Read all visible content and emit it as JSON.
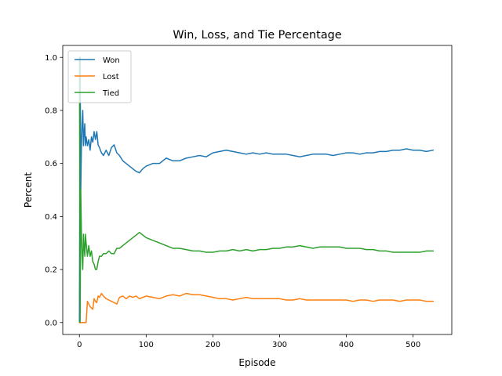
{
  "chart_data": {
    "type": "line",
    "title": "Win, Loss, and Tie Percentage",
    "xlabel": "Episode",
    "ylabel": "Percent",
    "xlim": [
      -25,
      558
    ],
    "ylim": [
      -0.045,
      1.045
    ],
    "xticks": [
      0,
      100,
      200,
      300,
      400,
      500
    ],
    "yticks": [
      0.0,
      0.2,
      0.4,
      0.6,
      0.8,
      1.0
    ],
    "xtick_labels": [
      "0",
      "100",
      "200",
      "300",
      "400",
      "500"
    ],
    "ytick_labels": [
      "0.0",
      "0.2",
      "0.4",
      "0.6",
      "0.8",
      "1.0"
    ],
    "grid": false,
    "legend_position": "upper-left",
    "series": [
      {
        "name": "Won",
        "color": "#1f77b4",
        "x": [
          0,
          1,
          2,
          3,
          4,
          5,
          6,
          7,
          8,
          9,
          10,
          12,
          14,
          16,
          18,
          20,
          22,
          24,
          26,
          28,
          30,
          33,
          36,
          40,
          44,
          48,
          52,
          56,
          60,
          65,
          70,
          75,
          80,
          85,
          90,
          95,
          100,
          110,
          120,
          130,
          140,
          150,
          160,
          170,
          180,
          190,
          200,
          210,
          220,
          230,
          240,
          250,
          260,
          270,
          280,
          290,
          300,
          310,
          320,
          330,
          340,
          350,
          360,
          370,
          380,
          390,
          400,
          410,
          420,
          430,
          440,
          450,
          460,
          470,
          480,
          490,
          500,
          510,
          520,
          530
        ],
        "y": [
          0.0,
          1.0,
          0.5,
          0.667,
          0.75,
          0.8,
          0.667,
          0.714,
          0.75,
          0.667,
          0.7,
          0.667,
          0.69,
          0.65,
          0.7,
          0.68,
          0.72,
          0.69,
          0.72,
          0.67,
          0.66,
          0.64,
          0.63,
          0.65,
          0.63,
          0.66,
          0.67,
          0.64,
          0.63,
          0.61,
          0.6,
          0.59,
          0.58,
          0.57,
          0.565,
          0.58,
          0.59,
          0.6,
          0.6,
          0.62,
          0.61,
          0.61,
          0.62,
          0.625,
          0.63,
          0.625,
          0.64,
          0.645,
          0.65,
          0.645,
          0.64,
          0.635,
          0.64,
          0.635,
          0.64,
          0.635,
          0.635,
          0.635,
          0.63,
          0.625,
          0.63,
          0.635,
          0.635,
          0.635,
          0.63,
          0.635,
          0.64,
          0.64,
          0.635,
          0.64,
          0.64,
          0.645,
          0.645,
          0.65,
          0.65,
          0.655,
          0.65,
          0.65,
          0.645,
          0.65
        ]
      },
      {
        "name": "Lost",
        "color": "#ff7f0e",
        "x": [
          0,
          2,
          4,
          6,
          8,
          10,
          12,
          14,
          16,
          18,
          20,
          22,
          24,
          26,
          28,
          30,
          33,
          36,
          40,
          44,
          48,
          52,
          56,
          60,
          65,
          70,
          75,
          80,
          85,
          90,
          95,
          100,
          110,
          120,
          130,
          140,
          150,
          160,
          170,
          180,
          190,
          200,
          210,
          220,
          230,
          240,
          250,
          260,
          270,
          280,
          290,
          300,
          310,
          320,
          330,
          340,
          350,
          360,
          370,
          380,
          390,
          400,
          410,
          420,
          430,
          440,
          450,
          460,
          470,
          480,
          490,
          500,
          510,
          520,
          530
        ],
        "y": [
          0.0,
          0.0,
          0.0,
          0.0,
          0.0,
          0.0,
          0.08,
          0.07,
          0.06,
          0.055,
          0.05,
          0.09,
          0.08,
          0.075,
          0.1,
          0.095,
          0.11,
          0.1,
          0.09,
          0.085,
          0.08,
          0.075,
          0.07,
          0.095,
          0.1,
          0.09,
          0.1,
          0.095,
          0.1,
          0.09,
          0.095,
          0.1,
          0.095,
          0.09,
          0.1,
          0.105,
          0.1,
          0.11,
          0.105,
          0.105,
          0.1,
          0.095,
          0.09,
          0.09,
          0.085,
          0.09,
          0.095,
          0.09,
          0.09,
          0.09,
          0.09,
          0.09,
          0.085,
          0.085,
          0.09,
          0.085,
          0.085,
          0.085,
          0.085,
          0.085,
          0.085,
          0.085,
          0.08,
          0.085,
          0.085,
          0.08,
          0.085,
          0.085,
          0.085,
          0.08,
          0.085,
          0.085,
          0.085,
          0.08,
          0.08
        ]
      },
      {
        "name": "Tied",
        "color": "#2ca02c",
        "x": [
          0,
          1,
          2,
          3,
          4,
          5,
          6,
          7,
          8,
          9,
          10,
          12,
          14,
          16,
          18,
          20,
          22,
          24,
          26,
          28,
          30,
          33,
          36,
          40,
          44,
          48,
          52,
          56,
          60,
          65,
          70,
          75,
          80,
          85,
          90,
          95,
          100,
          110,
          120,
          130,
          140,
          150,
          160,
          170,
          180,
          190,
          200,
          210,
          220,
          230,
          240,
          250,
          260,
          270,
          280,
          290,
          300,
          310,
          320,
          330,
          340,
          350,
          360,
          370,
          380,
          390,
          400,
          410,
          420,
          430,
          440,
          450,
          460,
          470,
          480,
          490,
          500,
          510,
          520,
          530
        ],
        "y": [
          1.0,
          0.0,
          0.5,
          0.333,
          0.25,
          0.2,
          0.333,
          0.286,
          0.25,
          0.333,
          0.3,
          0.25,
          0.29,
          0.25,
          0.27,
          0.23,
          0.22,
          0.2,
          0.2,
          0.23,
          0.25,
          0.25,
          0.26,
          0.26,
          0.27,
          0.26,
          0.26,
          0.28,
          0.28,
          0.29,
          0.3,
          0.31,
          0.32,
          0.33,
          0.34,
          0.33,
          0.32,
          0.31,
          0.3,
          0.29,
          0.28,
          0.28,
          0.275,
          0.27,
          0.27,
          0.265,
          0.265,
          0.27,
          0.27,
          0.275,
          0.27,
          0.275,
          0.27,
          0.275,
          0.275,
          0.28,
          0.28,
          0.285,
          0.285,
          0.29,
          0.285,
          0.28,
          0.285,
          0.285,
          0.285,
          0.285,
          0.28,
          0.28,
          0.28,
          0.275,
          0.275,
          0.27,
          0.27,
          0.265,
          0.265,
          0.265,
          0.265,
          0.265,
          0.27,
          0.27
        ]
      }
    ]
  }
}
